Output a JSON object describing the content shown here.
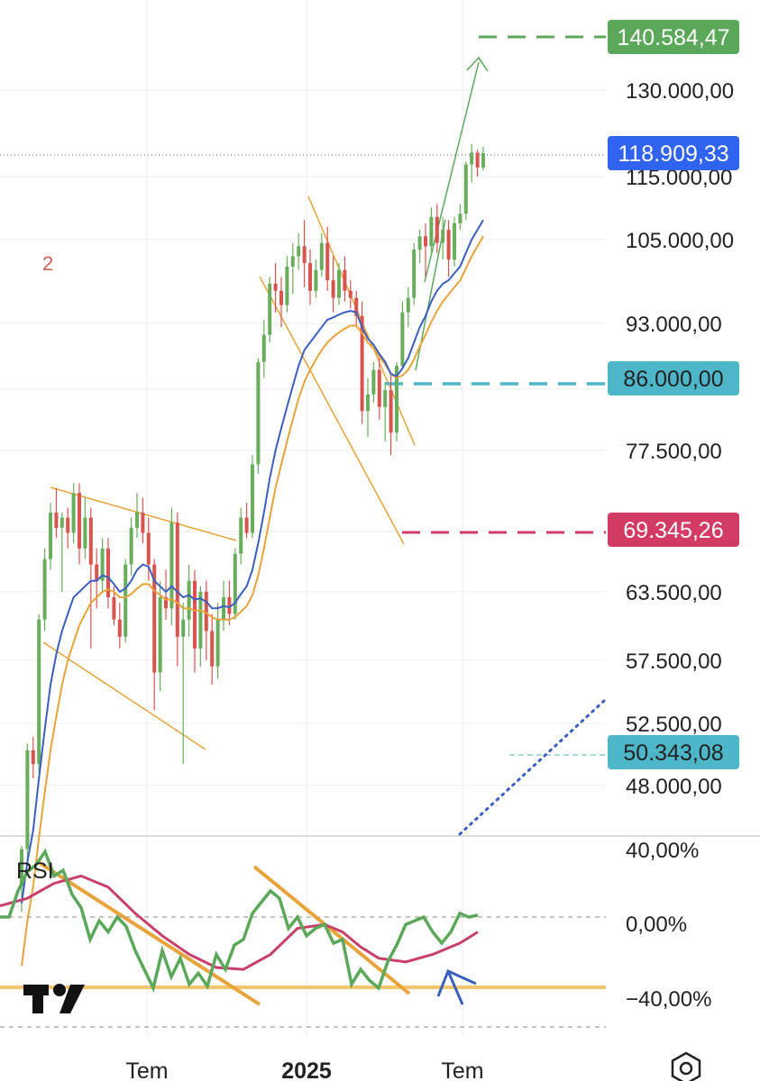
{
  "chart_data": [
    {
      "type": "candlestick",
      "marker_label": "2",
      "price_scale": [
        "130.000,00",
        "115.000,00",
        "105.000,00",
        "93.000,00",
        "77.500,00",
        "63.500,00",
        "57.500,00",
        "52.500,00",
        "48.000,00"
      ],
      "price_tags": [
        {
          "label": "140.584,47",
          "price": 140584.47,
          "color": "#5ba85a",
          "text_color": "#ffffff"
        },
        {
          "label": "118.909,33",
          "price": 118909.33,
          "color": "#2f63f0",
          "text_color": "#ffffff"
        },
        {
          "label": "86.000,00",
          "price": 86000,
          "color": "#4db6c9",
          "text_color": "#222222"
        },
        {
          "label": "69.345,26",
          "price": 69345.26,
          "color": "#d23c64",
          "text_color": "#ffffff"
        },
        {
          "label": "50.343,08",
          "price": 50343.08,
          "color": "#4db6c9",
          "text_color": "#222222"
        }
      ],
      "x_labels": [
        {
          "label": "Tem",
          "bold": false
        },
        {
          "label": "2025",
          "bold": true
        },
        {
          "label": "Tem",
          "bold": false
        }
      ],
      "candles": [
        [
          41500,
          44000,
          40000,
          43800
        ],
        [
          43800,
          51000,
          43000,
          50500
        ],
        [
          50500,
          51500,
          48500,
          49500
        ],
        [
          49500,
          61500,
          49000,
          61000
        ],
        [
          61000,
          67500,
          60000,
          66500
        ],
        [
          66500,
          72000,
          65500,
          71000
        ],
        [
          71000,
          73500,
          68500,
          69500
        ],
        [
          69500,
          71000,
          63500,
          70500
        ],
        [
          70500,
          71500,
          67500,
          69000
        ],
        [
          69000,
          74000,
          68000,
          73000
        ],
        [
          73000,
          74000,
          66000,
          67500
        ],
        [
          67500,
          72500,
          66500,
          70500
        ],
        [
          70500,
          71500,
          58500,
          66000
        ],
        [
          66000,
          67500,
          62000,
          64500
        ],
        [
          64500,
          68500,
          63500,
          67500
        ],
        [
          67500,
          68500,
          62000,
          63000
        ],
        [
          63000,
          64000,
          60500,
          61000
        ],
        [
          61000,
          62500,
          58500,
          59500
        ],
        [
          59500,
          66500,
          59000,
          66000
        ],
        [
          66000,
          70500,
          65000,
          69500
        ],
        [
          69500,
          73000,
          68500,
          71000
        ],
        [
          71000,
          72500,
          68000,
          69000
        ],
        [
          69000,
          70500,
          64500,
          66000
        ],
        [
          66000,
          66500,
          53500,
          56500
        ],
        [
          56500,
          64500,
          55000,
          63000
        ],
        [
          63000,
          65500,
          61000,
          62000
        ],
        [
          62000,
          71500,
          60500,
          70000
        ],
        [
          70000,
          71000,
          57000,
          59500
        ],
        [
          59500,
          62500,
          49500,
          61000
        ],
        [
          61000,
          66000,
          59500,
          64500
        ],
        [
          64500,
          65500,
          56500,
          58500
        ],
        [
          58500,
          64000,
          57000,
          63500
        ],
        [
          63500,
          64500,
          57500,
          60000
        ],
        [
          60000,
          61500,
          55500,
          57000
        ],
        [
          57000,
          62500,
          56000,
          61000
        ],
        [
          61000,
          64500,
          60000,
          63000
        ],
        [
          63000,
          64500,
          60500,
          61500
        ],
        [
          61500,
          67500,
          61000,
          67000
        ],
        [
          67000,
          71500,
          66000,
          70500
        ],
        [
          70500,
          72000,
          68500,
          69000
        ],
        [
          69000,
          77000,
          68500,
          76000
        ],
        [
          76000,
          88500,
          75000,
          88000
        ],
        [
          88000,
          93500,
          86000,
          91500
        ],
        [
          91500,
          99500,
          90500,
          98500
        ],
        [
          98500,
          101500,
          94500,
          97500
        ],
        [
          97500,
          99500,
          92500,
          95500
        ],
        [
          95500,
          102500,
          94500,
          101000
        ],
        [
          101000,
          104500,
          97000,
          102500
        ],
        [
          102500,
          106000,
          100500,
          104000
        ],
        [
          104000,
          108000,
          98000,
          101500
        ],
        [
          101500,
          103500,
          95500,
          97500
        ],
        [
          97500,
          102000,
          96500,
          100500
        ],
        [
          100500,
          106000,
          99500,
          104500
        ],
        [
          104500,
          107000,
          97500,
          99000
        ],
        [
          99000,
          102500,
          94500,
          96500
        ],
        [
          96500,
          101500,
          95500,
          100500
        ],
        [
          100500,
          102500,
          96000,
          97500
        ],
        [
          97500,
          99000,
          95000,
          96500
        ],
        [
          96500,
          97500,
          92500,
          94000
        ],
        [
          94000,
          96000,
          80500,
          82000
        ],
        [
          82000,
          86000,
          79000,
          84000
        ],
        [
          84000,
          88000,
          83000,
          87000
        ],
        [
          87000,
          88500,
          81000,
          82500
        ],
        [
          82500,
          85500,
          78500,
          84500
        ],
        [
          84500,
          86500,
          77000,
          79500
        ],
        [
          79500,
          88000,
          78500,
          87500
        ],
        [
          87500,
          96000,
          87000,
          94500
        ],
        [
          94500,
          98000,
          92500,
          96500
        ],
        [
          96500,
          104500,
          95500,
          103500
        ],
        [
          103500,
          106500,
          101500,
          105500
        ],
        [
          105500,
          107500,
          99500,
          104000
        ],
        [
          104000,
          110000,
          103000,
          108500
        ],
        [
          108500,
          110500,
          103000,
          104500
        ],
        [
          104500,
          108500,
          102000,
          106500
        ],
        [
          106500,
          108000,
          99500,
          102000
        ],
        [
          102000,
          108500,
          101000,
          107500
        ],
        [
          107500,
          110500,
          106500,
          109000
        ],
        [
          109000,
          117500,
          108000,
          117000
        ],
        [
          117000,
          120500,
          114000,
          119000
        ],
        [
          119000,
          119500,
          115000,
          116500
        ],
        [
          116500,
          120000,
          116000,
          118909
        ]
      ],
      "ema_blue": [
        40500,
        43000,
        45000,
        48500,
        52000,
        55500,
        58000,
        60000,
        61500,
        63000,
        63500,
        64000,
        64500,
        64500,
        65000,
        64800,
        64200,
        63500,
        63800,
        64500,
        65500,
        66000,
        65800,
        64500,
        64000,
        63500,
        64000,
        63500,
        63000,
        63200,
        62800,
        62900,
        62600,
        62000,
        62000,
        62200,
        62100,
        62500,
        63300,
        64000,
        65500,
        68000,
        71000,
        74500,
        77500,
        80000,
        82500,
        85000,
        87500,
        89500,
        90500,
        91500,
        92500,
        93500,
        93800,
        94200,
        94500,
        94700,
        94500,
        92500,
        91000,
        90200,
        89000,
        88000,
        86500,
        86200,
        87200,
        88500,
        90500,
        92500,
        94000,
        96000,
        97500,
        98500,
        99000,
        100000,
        101000,
        103000,
        105000,
        106500,
        108000
      ],
      "ema_orange": [
        37000,
        39500,
        41500,
        44500,
        47500,
        50500,
        53000,
        55500,
        57500,
        59000,
        60500,
        61500,
        62500,
        63000,
        63500,
        63700,
        63500,
        63000,
        63000,
        63300,
        63800,
        64200,
        64200,
        63600,
        63200,
        62800,
        62800,
        62500,
        62000,
        62000,
        61800,
        61800,
        61600,
        61200,
        61000,
        61000,
        61000,
        61200,
        61700,
        62200,
        63200,
        65000,
        67500,
        70500,
        73500,
        76000,
        78500,
        81000,
        83500,
        85500,
        87000,
        88300,
        89500,
        90500,
        91200,
        91800,
        92300,
        92700,
        92700,
        91700,
        90500,
        89700,
        88700,
        87700,
        86500,
        86000,
        86300,
        87000,
        88300,
        90000,
        91500,
        93200,
        94700,
        96000,
        97000,
        98000,
        99000,
        100700,
        102500,
        104000,
        105500
      ],
      "rsi_scale": [
        "40,00%",
        "0,00%",
        "−40,00%"
      ],
      "rsi_label": "RSI",
      "rsi": [
        [
          0,
          0.0
        ],
        [
          10,
          0.0
        ],
        [
          20,
          14.0
        ],
        [
          30,
          24.0
        ],
        [
          40,
          28.0
        ],
        [
          50,
          35.0
        ],
        [
          60,
          22.0
        ],
        [
          70,
          25.0
        ],
        [
          80,
          12.0
        ],
        [
          90,
          5.0
        ],
        [
          100,
          -12.0
        ],
        [
          110,
          -2.0
        ],
        [
          120,
          -8.0
        ],
        [
          130,
          0.0
        ],
        [
          140,
          -5.0
        ],
        [
          150,
          -18.0
        ],
        [
          160,
          -28.0
        ],
        [
          170,
          -38.0
        ],
        [
          180,
          -18.0
        ],
        [
          190,
          -32.0
        ],
        [
          200,
          -22.0
        ],
        [
          210,
          -36.0
        ],
        [
          220,
          -30.0
        ],
        [
          230,
          -37.0
        ],
        [
          240,
          -20.0
        ],
        [
          250,
          -28.0
        ],
        [
          260,
          -15.0
        ],
        [
          270,
          -12.0
        ],
        [
          280,
          2.0
        ],
        [
          290,
          8.0
        ],
        [
          300,
          14.0
        ],
        [
          310,
          10.0
        ],
        [
          320,
          -6.0
        ],
        [
          330,
          0.0
        ],
        [
          340,
          -10.0
        ],
        [
          350,
          -6.0
        ],
        [
          360,
          -4.0
        ],
        [
          370,
          -14.0
        ],
        [
          380,
          -12.0
        ],
        [
          390,
          -36.0
        ],
        [
          400,
          -28.0
        ],
        [
          410,
          -34.0
        ],
        [
          420,
          -38.0
        ],
        [
          430,
          -24.0
        ],
        [
          440,
          -15.0
        ],
        [
          450,
          -4.0
        ],
        [
          460,
          -2.0
        ],
        [
          470,
          0.0
        ],
        [
          480,
          -8.0
        ],
        [
          490,
          -14.0
        ],
        [
          500,
          -8.0
        ],
        [
          510,
          2.0
        ],
        [
          520,
          0.0
        ],
        [
          530,
          1.0
        ]
      ],
      "rsi_ma": [
        [
          0,
          6.0
        ],
        [
          30,
          10.0
        ],
        [
          60,
          18.0
        ],
        [
          90,
          22.0
        ],
        [
          120,
          16.0
        ],
        [
          150,
          2.0
        ],
        [
          180,
          -10.0
        ],
        [
          210,
          -20.0
        ],
        [
          240,
          -27.0
        ],
        [
          270,
          -28.0
        ],
        [
          300,
          -20.0
        ],
        [
          330,
          -6.0
        ],
        [
          360,
          -4.0
        ],
        [
          380,
          -8.0
        ],
        [
          400,
          -16.0
        ],
        [
          420,
          -22.0
        ],
        [
          450,
          -24.0
        ],
        [
          480,
          -20.0
        ],
        [
          510,
          -14.0
        ],
        [
          530,
          -8.0
        ]
      ]
    }
  ]
}
